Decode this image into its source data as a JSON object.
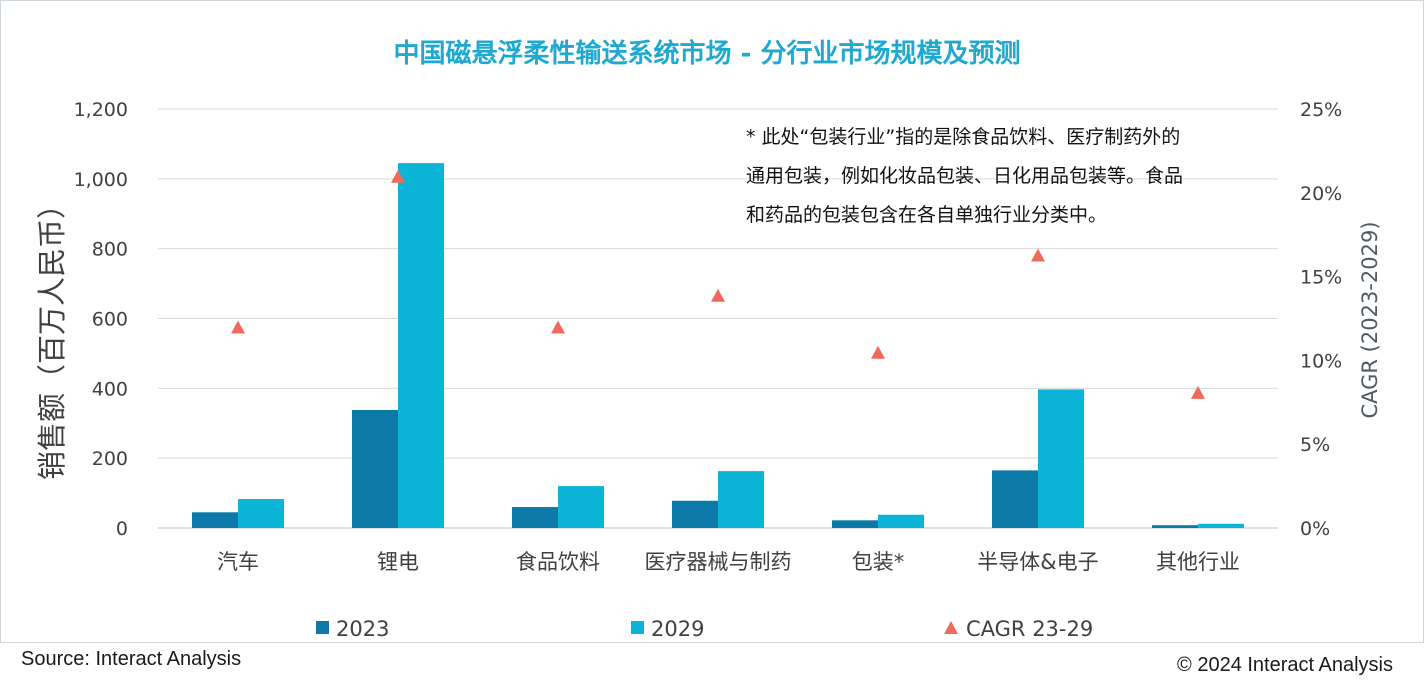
{
  "chart_data": {
    "type": "bar",
    "title": "中国磁悬浮柔性输送系统市场 - 分行业市场规模及预测",
    "ylabel": "销售额（百万人民币）",
    "y2label": "CAGR (2023-2029)",
    "ylim": [
      0,
      1200
    ],
    "y2lim": [
      0,
      25
    ],
    "yticks": [
      "0",
      "200",
      "400",
      "600",
      "800",
      "1,000",
      "1,200"
    ],
    "y2ticks": [
      "0%",
      "5%",
      "10%",
      "15%",
      "20%",
      "25%"
    ],
    "grid": true,
    "legend_position": "bottom",
    "categories": [
      "汽车",
      "锂电",
      "食品饮料",
      "医疗器械与制药",
      "包装*",
      "半导体&电子",
      "其他行业"
    ],
    "series": [
      {
        "name": "2023",
        "kind": "bar",
        "axis": "left",
        "color": "#0b7aa8",
        "values": [
          45,
          338,
          60,
          78,
          22,
          165,
          8
        ]
      },
      {
        "name": "2029",
        "kind": "bar",
        "axis": "left",
        "color": "#0cb5d8",
        "values": [
          83,
          1045,
          120,
          163,
          38,
          397,
          12
        ]
      },
      {
        "name": "CAGR 23-29",
        "kind": "marker",
        "axis": "right",
        "color": "#f06a5a",
        "values": [
          11.9,
          20.9,
          11.9,
          13.8,
          10.4,
          16.2,
          8.0
        ]
      }
    ],
    "annotation": [
      "* 此处“包装行业”指的是除食品饮料、医疗制药外的",
      "通用包装，例如化妆品包装、日化用品包装等。食品",
      "和药品的包装包含在各自单独行业分类中。"
    ]
  },
  "footer": {
    "source": "Source: Interact Analysis",
    "copyright": "© 2024 Interact Analysis"
  }
}
